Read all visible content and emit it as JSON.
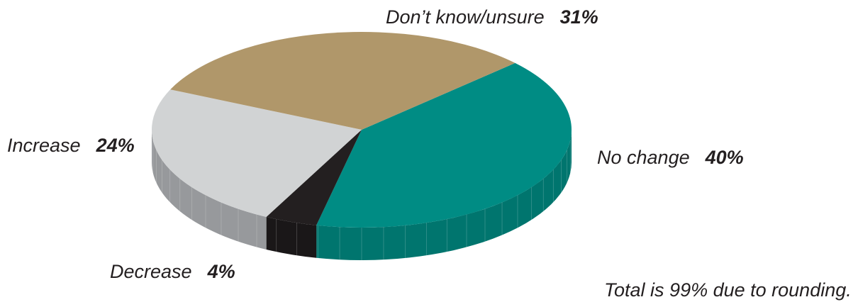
{
  "chart_data": {
    "type": "pie",
    "title": "",
    "style": "3d",
    "slices": [
      {
        "label": "No change",
        "value": 40,
        "value_label": "40%",
        "color": "#008c84",
        "side_color": "#00756e"
      },
      {
        "label": "Decrease",
        "value": 4,
        "value_label": "4%",
        "color": "#231f20",
        "side_color": "#1a1718"
      },
      {
        "label": "Increase",
        "value": 24,
        "value_label": "24%",
        "color": "#d1d3d4",
        "side_color": "#97999c"
      },
      {
        "label": "Don’t know/unsure",
        "value": 31,
        "value_label": "31%",
        "color": "#b0976a",
        "side_color": "#8f7a55"
      }
    ],
    "note": "Total is 99% due to rounding."
  }
}
